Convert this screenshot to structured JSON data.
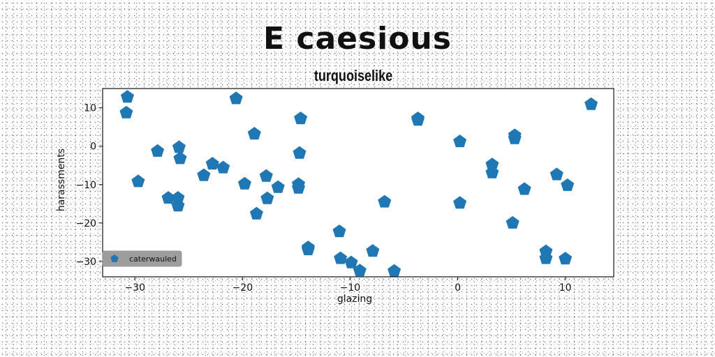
{
  "chart_data": {
    "type": "scatter",
    "title": "E caesious",
    "subtitle": "turquoiselike",
    "xlabel": "glazing",
    "ylabel": "harassments",
    "xlim": [
      -33,
      14.5
    ],
    "ylim": [
      -34,
      15
    ],
    "xticks": [
      -30,
      -20,
      -10,
      0,
      10
    ],
    "xtick_labels": [
      "−30",
      "−20",
      "−10",
      "0",
      "10"
    ],
    "yticks": [
      10,
      0,
      -10,
      -20,
      -30
    ],
    "ytick_labels": [
      "10",
      "0",
      "−10",
      "−20",
      "−30"
    ],
    "grid": false,
    "legend_position": "lower-left",
    "marker": "pentagon",
    "color": "#1f77b4",
    "series": [
      {
        "name": "caterwauled",
        "x": [
          -30.7,
          -30.8,
          -29.7,
          -27.9,
          -26.9,
          -26.0,
          -26.0,
          -25.9,
          -25.8,
          -23.6,
          -22.8,
          -21.8,
          -20.6,
          -19.8,
          -18.9,
          -18.7,
          -17.8,
          -17.7,
          -16.7,
          -14.6,
          -14.7,
          -14.8,
          -14.8,
          -13.9,
          -13.9,
          -11.0,
          -10.9,
          -9.9,
          -9.1,
          -7.9,
          -6.8,
          -5.9,
          -3.7,
          -3.7,
          0.2,
          0.2,
          3.2,
          3.2,
          5.1,
          5.3,
          5.3,
          6.2,
          8.2,
          8.2,
          9.2,
          10.0,
          10.2,
          12.4
        ],
        "y": [
          12.8,
          8.7,
          -9.2,
          -1.3,
          -13.5,
          -13.5,
          -15.5,
          -0.3,
          -3.2,
          -7.6,
          -4.6,
          -5.6,
          12.4,
          -9.8,
          3.2,
          -17.6,
          -7.8,
          -13.6,
          -10.7,
          7.2,
          -1.8,
          -9.9,
          -10.9,
          -26.4,
          -26.9,
          -22.2,
          -29.2,
          -30.3,
          -32.4,
          -27.3,
          -14.5,
          -32.5,
          7.2,
          6.8,
          1.2,
          -14.8,
          -4.8,
          -6.9,
          -20.0,
          2.8,
          2.0,
          -11.2,
          -27.4,
          -29.2,
          -7.4,
          -29.3,
          -10.2,
          10.9
        ]
      }
    ]
  }
}
